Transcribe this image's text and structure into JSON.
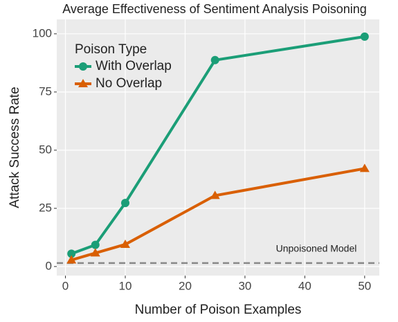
{
  "chart_data": {
    "type": "line",
    "title": "Average Effectiveness of Sentiment Analysis Poisoning",
    "x_label": "Number of Poison Examples",
    "y_label": "Attack Success Rate",
    "legend_title": "Poison Type",
    "legend_position": "top-left",
    "x": [
      1,
      5,
      10,
      25,
      50
    ],
    "series": [
      {
        "name": "With Overlap",
        "color": "#1b9e77",
        "marker": "circle",
        "values": [
          5.5,
          9.3,
          27.3,
          88.7,
          98.8
        ]
      },
      {
        "name": "No Overlap",
        "color": "#d95f02",
        "marker": "triangle",
        "values": [
          2.8,
          5.8,
          9.5,
          30.5,
          42.1
        ]
      }
    ],
    "reference_line": {
      "value": 1.5,
      "label": "Unpoisoned Model",
      "color": "#888888"
    },
    "xlim": [
      -1.45,
      52.45
    ],
    "xticks": [
      0,
      10,
      20,
      30,
      40,
      50
    ],
    "ylim": [
      -3.9,
      106.2
    ],
    "yticks": [
      0,
      25,
      50,
      75,
      100
    ],
    "grid": true
  }
}
